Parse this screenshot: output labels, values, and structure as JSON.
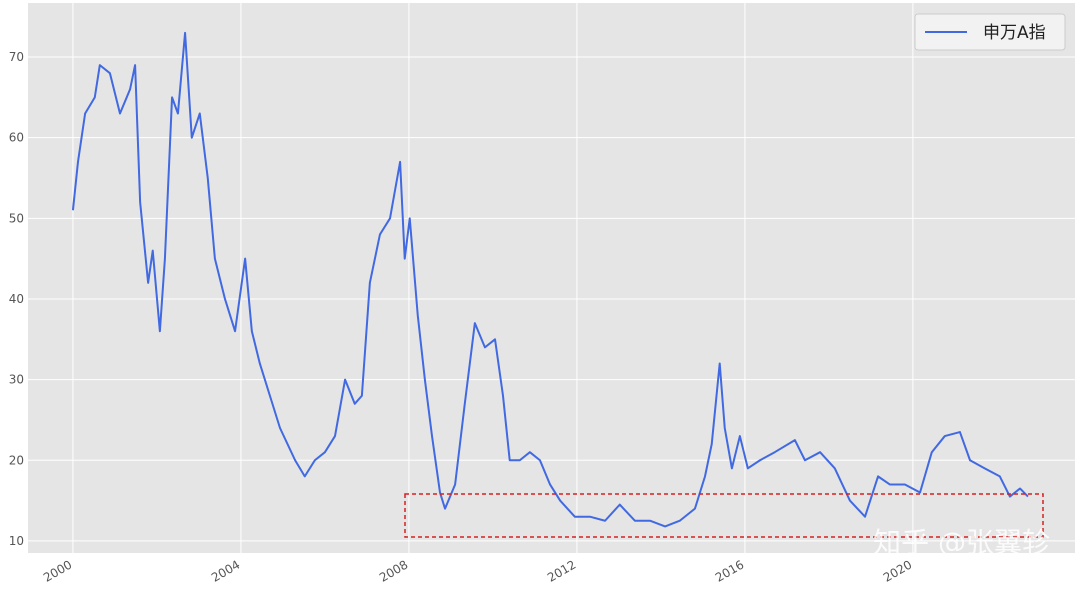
{
  "chart_data": {
    "type": "line",
    "x": [
      2000.0,
      2000.12,
      2000.29,
      2000.52,
      2000.64,
      2000.88,
      2001.12,
      2001.36,
      2001.48,
      2001.6,
      2001.79,
      2001.9,
      2002.07,
      2002.19,
      2002.36,
      2002.5,
      2002.67,
      2002.83,
      2003.02,
      2003.21,
      2003.38,
      2003.62,
      2003.86,
      2004.1,
      2004.26,
      2004.45,
      2004.69,
      2004.93,
      2005.29,
      2005.52,
      2005.76,
      2006.0,
      2006.24,
      2006.48,
      2006.71,
      2006.88,
      2007.07,
      2007.31,
      2007.55,
      2007.79,
      2007.9,
      2008.02,
      2008.21,
      2008.38,
      2008.55,
      2008.74,
      2008.86,
      2009.1,
      2009.33,
      2009.57,
      2009.81,
      2010.05,
      2010.24,
      2010.4,
      2010.64,
      2010.88,
      2011.12,
      2011.36,
      2011.6,
      2011.95,
      2012.31,
      2012.67,
      2013.02,
      2013.38,
      2013.74,
      2014.1,
      2014.45,
      2014.81,
      2015.05,
      2015.21,
      2015.4,
      2015.52,
      2015.69,
      2015.88,
      2016.07,
      2016.36,
      2016.71,
      2017.19,
      2017.43,
      2017.79,
      2018.14,
      2018.5,
      2018.86,
      2019.17,
      2019.45,
      2019.81,
      2020.17,
      2020.45,
      2020.76,
      2021.12,
      2021.36,
      2021.71,
      2022.07,
      2022.31,
      2022.55,
      2022.74
    ],
    "series": [
      {
        "name": "申万A指",
        "color": "#4169e1",
        "values": [
          51,
          57,
          63,
          65,
          69,
          68,
          63,
          66,
          69,
          52,
          42,
          46,
          36,
          45,
          65,
          63,
          73,
          60,
          63,
          55,
          45,
          40,
          36,
          45,
          36,
          32,
          28,
          24,
          20,
          18,
          20,
          21,
          23,
          30,
          27,
          28,
          42,
          48,
          50,
          57,
          45,
          50,
          38,
          30,
          23,
          16,
          14,
          17,
          27,
          37,
          34,
          35,
          28,
          20,
          20,
          21,
          20,
          17,
          15,
          13,
          13,
          12.5,
          14.5,
          12.5,
          12.5,
          11.8,
          12.5,
          14,
          18,
          22,
          32,
          24,
          19,
          23,
          19,
          20,
          21,
          22.5,
          20,
          21,
          19,
          15,
          13,
          18,
          17,
          17,
          16,
          21,
          23,
          23.5,
          20,
          19,
          18,
          15.5,
          16.5,
          15.5
        ]
      }
    ],
    "xlim": [
      1998.93,
      2023.86
    ],
    "ylim": [
      8.5,
      76.7
    ],
    "xticks": [
      2000,
      2004,
      2008,
      2012,
      2016,
      2020
    ],
    "yticks": [
      10,
      20,
      30,
      40,
      50,
      60,
      70
    ],
    "grid": true,
    "legend": "upper right",
    "watermark": "知乎 @张翼轸"
  }
}
